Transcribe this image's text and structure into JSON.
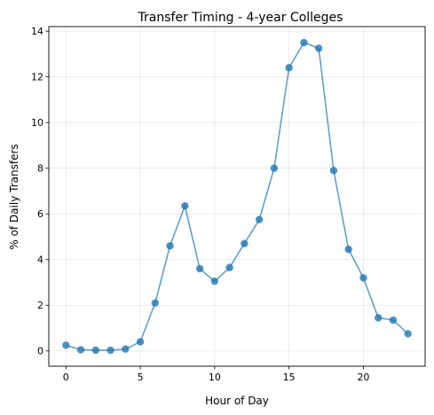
{
  "chart_data": {
    "type": "line",
    "title": "Transfer Timing - 4-year Colleges",
    "xlabel": "Hour of Day",
    "ylabel": "% of Daily Transfers",
    "xlim": [
      -1.15,
      24.15
    ],
    "ylim": [
      -0.67,
      14.2
    ],
    "xticks": [
      0,
      5,
      10,
      15,
      20
    ],
    "yticks": [
      0,
      2,
      4,
      6,
      8,
      10,
      12,
      14
    ],
    "grid": true,
    "color": "#1f77b4",
    "series": [
      {
        "x": [
          0,
          1,
          2,
          3,
          4,
          5,
          6,
          7,
          8,
          9,
          10,
          11,
          12,
          13,
          14,
          15,
          16,
          17,
          18,
          19,
          20,
          21,
          22,
          23
        ],
        "values": [
          0.25,
          0.05,
          0.03,
          0.03,
          0.08,
          0.4,
          2.1,
          4.6,
          6.35,
          3.6,
          3.05,
          3.65,
          4.7,
          5.75,
          8.0,
          12.4,
          13.5,
          13.25,
          7.9,
          4.45,
          3.2,
          1.45,
          1.35,
          0.75
        ]
      }
    ]
  }
}
